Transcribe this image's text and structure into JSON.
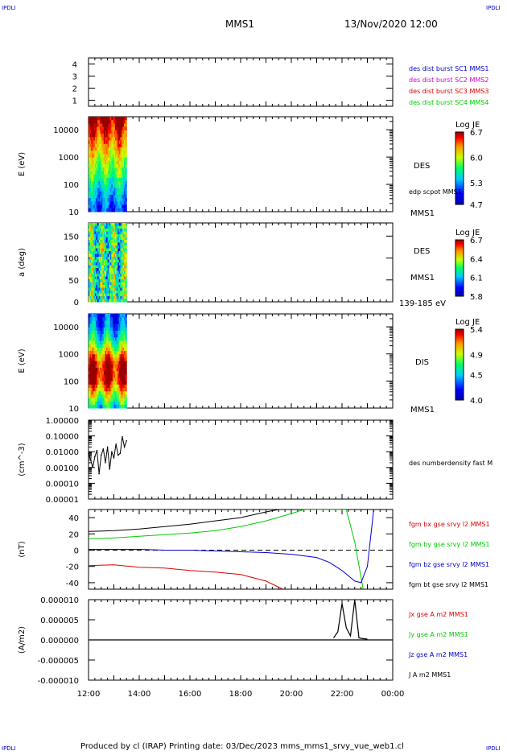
{
  "corner_label": "IPDLI",
  "header": {
    "spacecraft": "MMS1",
    "datetime": "13/Nov/2020 12:00"
  },
  "footer": {
    "text": "Produced by cl (IRAP)   Printing date: 03/Dec/2023   mms_mms1_srvy_vue_web1.cl"
  },
  "colors": {
    "blue": "#0000cc",
    "magenta": "#cc00cc",
    "red": "#dd0000",
    "green": "#00cc00",
    "black": "#000000"
  },
  "chart_data": [
    {
      "id": "burst-flags",
      "type": "scatter",
      "yticks": [
        "1",
        "2",
        "3",
        "4"
      ],
      "ylim": [
        0.5,
        4.5
      ],
      "legend": [
        {
          "name": "des dist burst SC1 MMS1",
          "color": "blue"
        },
        {
          "name": "des dist burst SC2 MMS2",
          "color": "magenta"
        },
        {
          "name": "des dist burst SC3 MMS3",
          "color": "red"
        },
        {
          "name": "des dist burst SC4 MMS4",
          "color": "green"
        }
      ]
    },
    {
      "id": "des-energy-spectrogram",
      "type": "heatmap",
      "ylabel": "E (eV)",
      "yscale": "log",
      "yticks": [
        "10",
        "100",
        "1000",
        "10000"
      ],
      "ylim": [
        10,
        30000
      ],
      "data_extent": [
        "12:00",
        "13:30"
      ],
      "instrument_label": "DES",
      "overlay_label": "edp scpot MMS1",
      "spacecraft_label": "MMS1",
      "colorbar": {
        "title": "Log JE",
        "ticks": [
          "6.7",
          "6.0",
          "5.3",
          "4.7"
        ],
        "range": [
          4.7,
          6.7
        ]
      }
    },
    {
      "id": "des-pitch-angle",
      "type": "heatmap",
      "ylabel": "a (deg)",
      "yticks": [
        "0",
        "50",
        "100",
        "150"
      ],
      "ylim": [
        0,
        180
      ],
      "data_extent": [
        "12:00",
        "13:30"
      ],
      "instrument_label": "DES",
      "spacecraft_label": "MMS1",
      "energy_range": "139-185 eV",
      "colorbar": {
        "title": "Log JE",
        "ticks": [
          "6.7",
          "6.4",
          "6.1",
          "5.8"
        ],
        "range": [
          5.8,
          6.7
        ]
      }
    },
    {
      "id": "dis-energy-spectrogram",
      "type": "heatmap",
      "ylabel": "E (eV)",
      "yscale": "log",
      "yticks": [
        "10",
        "100",
        "1000",
        "10000"
      ],
      "ylim": [
        10,
        30000
      ],
      "data_extent": [
        "12:00",
        "13:30"
      ],
      "instrument_label": "DIS",
      "spacecraft_label": "MMS1",
      "colorbar": {
        "title": "Log JE",
        "ticks": [
          "5.4",
          "4.9",
          "4.5",
          "4.0"
        ],
        "range": [
          4.0,
          5.4
        ]
      }
    },
    {
      "id": "density",
      "type": "line",
      "ylabel": "(cm^-3)",
      "yscale": "log",
      "yticks": [
        "0.00001",
        "0.00010",
        "0.00100",
        "0.01000",
        "0.10000",
        "1.00000"
      ],
      "ylim": [
        1e-05,
        1.0
      ],
      "series": [
        {
          "name": "des numberdensity fast M",
          "color": "black",
          "x": [
            "12:00",
            "12:05",
            "12:10",
            "12:15",
            "12:20",
            "12:25",
            "12:30",
            "12:35",
            "12:40",
            "12:45",
            "12:50",
            "12:55",
            "13:00",
            "13:05",
            "13:10",
            "13:15",
            "13:20",
            "13:25",
            "13:30"
          ],
          "values": [
            0.008,
            0.003,
            0.001,
            0.005,
            0.012,
            0.0004,
            0.006,
            0.015,
            0.002,
            0.02,
            0.0008,
            0.01,
            0.004,
            0.03,
            0.006,
            0.008,
            0.09,
            0.02,
            0.05
          ]
        }
      ]
    },
    {
      "id": "magnetic-field",
      "type": "line",
      "ylabel": "(nT)",
      "yticks": [
        "-40",
        "-20",
        "0",
        "20",
        "40"
      ],
      "ylim": [
        -48,
        50
      ],
      "zero_line": "dashed",
      "series": [
        {
          "name": "fgm bx gse srvy l2 MMS1",
          "color": "red",
          "x": [
            "12:00",
            "13:00",
            "14:00",
            "15:00",
            "16:00",
            "17:00",
            "18:00",
            "19:00",
            "19:40"
          ],
          "values": [
            -19,
            -18,
            -21,
            -22,
            -25,
            -27,
            -30,
            -38,
            -48
          ]
        },
        {
          "name": "fgm by gse srvy l2 MMS1",
          "color": "green",
          "x": [
            "12:00",
            "13:00",
            "14:00",
            "15:00",
            "16:00",
            "17:00",
            "18:00",
            "19:00",
            "20:00",
            "20:30",
            "22:10",
            "22:30",
            "22:50"
          ],
          "values": [
            14,
            15,
            17,
            19,
            21,
            24,
            29,
            36,
            45,
            50,
            50,
            10,
            -48
          ]
        },
        {
          "name": "fgm bz gse srvy l2 MMS1",
          "color": "blue",
          "x": [
            "12:00",
            "13:00",
            "14:00",
            "15:00",
            "16:00",
            "17:00",
            "18:00",
            "19:00",
            "20:00",
            "21:00",
            "21:30",
            "22:00",
            "22:30",
            "22:45",
            "23:00",
            "23:15"
          ],
          "values": [
            1,
            1,
            1,
            0,
            0,
            -1,
            -2,
            -3,
            -5,
            -9,
            -15,
            -25,
            -38,
            -40,
            -20,
            50
          ]
        },
        {
          "name": "fgm bt gse srvy l2 MMS1",
          "color": "black",
          "x": [
            "12:00",
            "13:00",
            "14:00",
            "15:00",
            "16:00",
            "17:00",
            "18:00",
            "19:00",
            "19:30"
          ],
          "values": [
            23,
            24,
            26,
            29,
            32,
            36,
            40,
            47,
            50
          ]
        }
      ]
    },
    {
      "id": "current-density",
      "type": "line",
      "ylabel": "(A/m2)",
      "yticks": [
        "-0.000010",
        "-0.000005",
        "0.000000",
        "0.000005",
        "0.000010"
      ],
      "ylim": [
        -1e-05,
        1e-05
      ],
      "xticks": [
        "12:00",
        "14:00",
        "16:00",
        "18:00",
        "20:00",
        "22:00",
        "00:00"
      ],
      "series": [
        {
          "name": "Jx gse A m2 MMS1",
          "color": "red"
        },
        {
          "name": "Jy gse A m2 MMS1",
          "color": "green"
        },
        {
          "name": "Jz gse A m2 MMS1",
          "color": "blue"
        },
        {
          "name": "J A m2 MMS1",
          "color": "black",
          "x": [
            "21:40",
            "21:50",
            "22:00",
            "22:10",
            "22:20",
            "22:30",
            "22:40",
            "22:50",
            "23:00"
          ],
          "values": [
            5e-07,
            2e-06,
            9e-06,
            3e-06,
            1e-06,
            1e-05,
            5e-07,
            3e-07,
            2e-07
          ]
        }
      ]
    }
  ]
}
